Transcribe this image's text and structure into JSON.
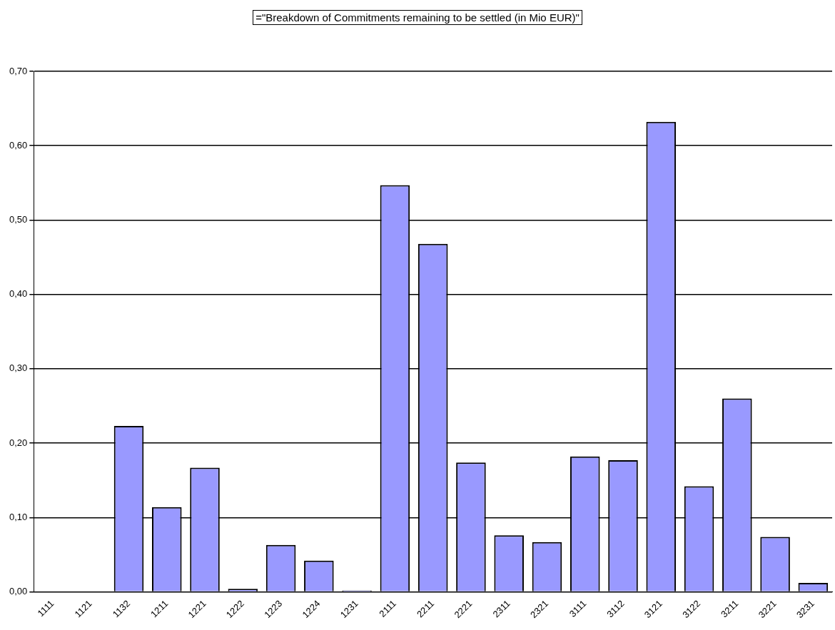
{
  "chart_data": {
    "type": "bar",
    "title": "=\"Breakdown of Commitments remaining to be settled (in Mio EUR)\"",
    "categories": [
      "1111",
      "1121",
      "1132",
      "1211",
      "1221",
      "1222",
      "1223",
      "1224",
      "1231",
      "2111",
      "2211",
      "2221",
      "2311",
      "2321",
      "3111",
      "3112",
      "3121",
      "3122",
      "3211",
      "3221",
      "3231"
    ],
    "values": [
      0,
      0,
      0.223,
      0.114,
      0.167,
      0.004,
      0.063,
      0.042,
      0.002,
      0.547,
      0.468,
      0.174,
      0.076,
      0.067,
      0.182,
      0.177,
      0.632,
      0.142,
      0.26,
      0.074,
      0.012
    ],
    "color": "#9999ff",
    "ylim": [
      0,
      0.7
    ],
    "yticks": [
      {
        "value": 0,
        "label": "0,00"
      },
      {
        "value": 0.1,
        "label": "0,10"
      },
      {
        "value": 0.2,
        "label": "0,20"
      },
      {
        "value": 0.3,
        "label": "0,30"
      },
      {
        "value": 0.4,
        "label": "0,40"
      },
      {
        "value": 0.5,
        "label": "0,50"
      },
      {
        "value": 0.6,
        "label": "0,60"
      },
      {
        "value": 0.7,
        "label": "0,70"
      }
    ],
    "grid": "y"
  }
}
